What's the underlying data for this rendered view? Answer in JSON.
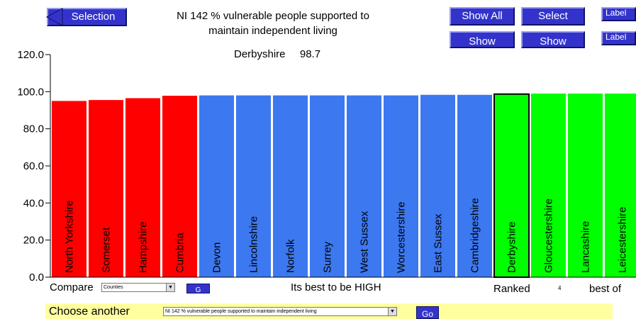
{
  "header": {
    "selection_label": "Selection",
    "title_line1": "NI 142 % vulnerable people supported to",
    "title_line2": "maintain independent living",
    "buttons": {
      "show_all": "Show All",
      "select": "Select",
      "label_top": "Label",
      "show_left": "Show",
      "show_right": "Show",
      "label_bottom": "Label"
    }
  },
  "highlight": {
    "name": "Derbyshire",
    "value": "98.7"
  },
  "chart_data": {
    "type": "bar",
    "ylim": [
      0,
      120
    ],
    "yticks": [
      "0.0",
      "20.0",
      "40.0",
      "60.0",
      "80.0",
      "100.0",
      "120.0"
    ],
    "categories": [
      "North Yorkshire",
      "Somerset",
      "Hampshire",
      "Cumbria",
      "Devon",
      "Lincolnshire",
      "Norfolk",
      "Surrey",
      "West Sussex",
      "Worcestershire",
      "East Sussex",
      "Cambridgeshire",
      "Derbyshire",
      "Gloucestershire",
      "Lancashire",
      "Leicestershire"
    ],
    "values": [
      95.0,
      95.5,
      96.5,
      97.8,
      98.0,
      98.0,
      98.0,
      98.0,
      98.0,
      98.0,
      98.3,
      98.3,
      98.7,
      99.0,
      99.0,
      99.0
    ],
    "colors": [
      "#ff0000",
      "#ff0000",
      "#ff0000",
      "#ff0000",
      "#3c78f0",
      "#3c78f0",
      "#3c78f0",
      "#3c78f0",
      "#3c78f0",
      "#3c78f0",
      "#3c78f0",
      "#3c78f0",
      "#00ff00",
      "#00ff00",
      "#00ff00",
      "#00ff00"
    ],
    "highlighted": "Derbyshire"
  },
  "footer": {
    "compare_label": "Compare",
    "compare_value": "Counties",
    "go_small": "G",
    "best_text": "Its best to be HIGH",
    "ranked_label": "Ranked",
    "rank_value": "4",
    "best_of_label": "best of",
    "choose_label": "Choose another",
    "choose_value": "NI 142 % vulnerable people supported to maintain independent living",
    "go_label": "Go"
  }
}
